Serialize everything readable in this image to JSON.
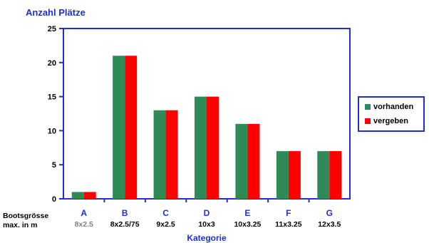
{
  "chart_data": {
    "type": "bar",
    "ylabel": "Anzahl Plätze",
    "xlabel": "Kategorie",
    "row_labels": [
      "Bootsgrösse",
      "max. in m"
    ],
    "categories": [
      "A",
      "B",
      "C",
      "D",
      "E",
      "F",
      "G"
    ],
    "sub_labels": [
      "8x2.5",
      "8x2.5/75",
      "9x2.5",
      "10x3",
      "10x3.25",
      "11x3.25",
      "12x3.5"
    ],
    "series": [
      {
        "name": "vorhanden",
        "values": [
          1,
          21,
          13,
          15,
          11,
          7,
          7
        ]
      },
      {
        "name": "vergeben",
        "values": [
          1,
          21,
          13,
          15,
          11,
          7,
          7
        ]
      }
    ],
    "ylim": [
      0,
      25
    ],
    "yticks": [
      0,
      5,
      10,
      15,
      20,
      25
    ],
    "grid": false,
    "legend": "right",
    "colors": {
      "vorhanden": "#2e8b57",
      "vergeben": "#ff0000",
      "axis": "#1f2fd0",
      "text": "#1f2fd0",
      "sub_label_first": "#808080"
    }
  }
}
